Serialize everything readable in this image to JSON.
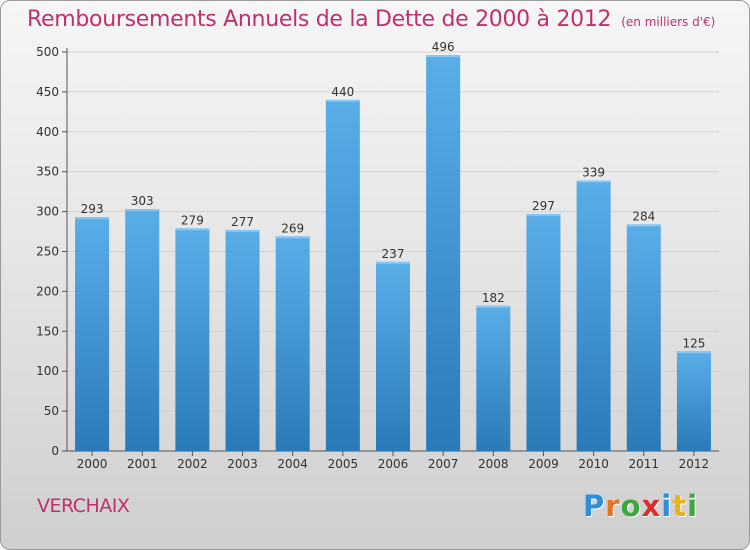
{
  "title": "Remboursements Annuels de la Dette de 2000 à 2012",
  "unit": "(en milliers d'€)",
  "commune": "VERCHAIX",
  "logo": {
    "letters": [
      "P",
      "r",
      "o",
      "x",
      "i",
      "t",
      "i"
    ],
    "colors": [
      "#2f8fd8",
      "#e8731e",
      "#3da83d",
      "#d72e2e",
      "#2f8fd8",
      "#e8b41e",
      "#3da83d"
    ]
  },
  "chart_data": {
    "type": "bar",
    "title": "Remboursements Annuels de la Dette de 2000 à 2012",
    "ylabel": "",
    "xlabel": "",
    "categories": [
      "2000",
      "2001",
      "2002",
      "2003",
      "2004",
      "2005",
      "2006",
      "2007",
      "2008",
      "2009",
      "2010",
      "2011",
      "2012"
    ],
    "values": [
      293,
      303,
      279,
      277,
      269,
      440,
      237,
      496,
      182,
      297,
      339,
      284,
      125
    ],
    "ylim": [
      0,
      500
    ],
    "yticks": [
      0,
      50,
      100,
      150,
      200,
      250,
      300,
      350,
      400,
      450,
      500
    ],
    "grid": true,
    "bar_color_top": "#5aaee8",
    "bar_color_bottom": "#2a7ab8"
  }
}
